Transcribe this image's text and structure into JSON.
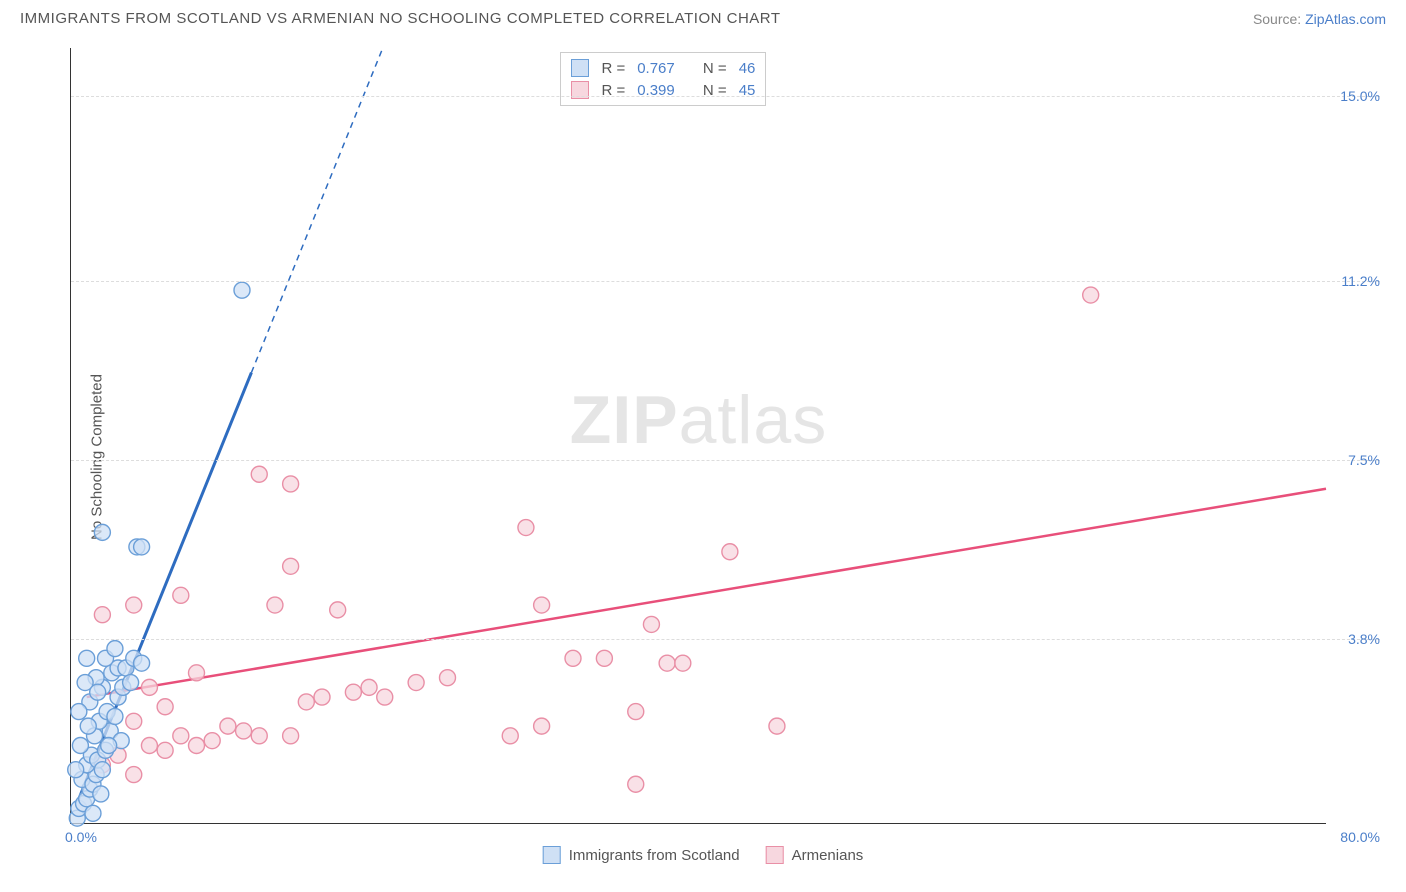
{
  "header": {
    "title": "IMMIGRANTS FROM SCOTLAND VS ARMENIAN NO SCHOOLING COMPLETED CORRELATION CHART",
    "source_prefix": "Source: ",
    "source_link": "ZipAtlas.com"
  },
  "chart": {
    "type": "scatter",
    "y_axis_label": "No Schooling Completed",
    "x_origin": "0.0%",
    "x_max": "80.0%",
    "xlim": [
      0,
      80
    ],
    "ylim": [
      0,
      16
    ],
    "y_ticks": [
      3.8,
      7.5,
      11.2,
      15.0
    ],
    "y_tick_labels": [
      "3.8%",
      "7.5%",
      "11.2%",
      "15.0%"
    ],
    "grid_color": "#dddddd",
    "axis_color": "#333333",
    "background_color": "#ffffff",
    "tick_label_color": "#4a7ec9",
    "watermark_zip": "ZIP",
    "watermark_atlas": "atlas",
    "series": {
      "scotland": {
        "label": "Immigrants from Scotland",
        "fill": "#cfe0f5",
        "stroke": "#6b9fd8",
        "line_color": "#2e6cc0",
        "r_label": "R =",
        "r_value": "0.767",
        "n_label": "N =",
        "n_value": "46",
        "line": {
          "x1": 0.5,
          "y1": 0.5,
          "x2": 11.5,
          "y2": 9.3,
          "dash_to_y": 16
        },
        "points": [
          [
            0.4,
            0.1
          ],
          [
            0.5,
            0.3
          ],
          [
            0.8,
            0.4
          ],
          [
            1.0,
            0.5
          ],
          [
            1.2,
            0.7
          ],
          [
            0.7,
            0.9
          ],
          [
            1.4,
            0.8
          ],
          [
            1.6,
            1.0
          ],
          [
            1.0,
            1.2
          ],
          [
            1.3,
            1.4
          ],
          [
            1.7,
            1.3
          ],
          [
            2.0,
            1.1
          ],
          [
            0.6,
            1.6
          ],
          [
            1.5,
            1.8
          ],
          [
            2.2,
            1.5
          ],
          [
            2.5,
            1.9
          ],
          [
            1.8,
            2.1
          ],
          [
            2.3,
            2.3
          ],
          [
            1.2,
            2.5
          ],
          [
            2.8,
            2.2
          ],
          [
            3.0,
            2.6
          ],
          [
            2.0,
            2.8
          ],
          [
            3.3,
            2.8
          ],
          [
            1.6,
            3.0
          ],
          [
            2.6,
            3.1
          ],
          [
            3.0,
            3.2
          ],
          [
            1.0,
            3.4
          ],
          [
            3.5,
            3.2
          ],
          [
            2.2,
            3.4
          ],
          [
            3.8,
            2.9
          ],
          [
            4.0,
            3.4
          ],
          [
            1.4,
            0.2
          ],
          [
            4.5,
            3.3
          ],
          [
            2.8,
            3.6
          ],
          [
            3.2,
            1.7
          ],
          [
            1.1,
            2.0
          ],
          [
            0.9,
            2.9
          ],
          [
            4.2,
            5.7
          ],
          [
            4.5,
            5.7
          ],
          [
            2.0,
            6.0
          ],
          [
            10.9,
            11.0
          ],
          [
            2.4,
            1.6
          ],
          [
            1.9,
            0.6
          ],
          [
            0.3,
            1.1
          ],
          [
            0.5,
            2.3
          ],
          [
            1.7,
            2.7
          ]
        ]
      },
      "armenian": {
        "label": "Armenians",
        "fill": "#f7d7df",
        "stroke": "#e98fa6",
        "line_color": "#e84f7a",
        "r_label": "R =",
        "r_value": "0.399",
        "n_label": "N =",
        "n_value": "45",
        "line": {
          "x1": 1,
          "y1": 2.6,
          "x2": 80,
          "y2": 6.9
        },
        "points": [
          [
            2,
            1.2
          ],
          [
            3,
            1.4
          ],
          [
            4,
            1.0
          ],
          [
            5,
            1.6
          ],
          [
            4,
            2.1
          ],
          [
            6,
            1.5
          ],
          [
            7,
            1.8
          ],
          [
            8,
            1.6
          ],
          [
            9,
            1.7
          ],
          [
            6,
            2.4
          ],
          [
            10,
            2.0
          ],
          [
            11,
            1.9
          ],
          [
            12,
            1.8
          ],
          [
            5,
            2.8
          ],
          [
            14,
            1.8
          ],
          [
            15,
            2.5
          ],
          [
            16,
            2.6
          ],
          [
            8,
            3.1
          ],
          [
            13,
            4.5
          ],
          [
            18,
            2.7
          ],
          [
            19,
            2.8
          ],
          [
            20,
            2.6
          ],
          [
            14,
            5.3
          ],
          [
            17,
            4.4
          ],
          [
            22,
            2.9
          ],
          [
            24,
            3.0
          ],
          [
            12,
            7.2
          ],
          [
            14,
            7.0
          ],
          [
            28,
            1.8
          ],
          [
            30,
            2.0
          ],
          [
            29,
            6.1
          ],
          [
            32,
            3.4
          ],
          [
            34,
            3.4
          ],
          [
            36,
            2.3
          ],
          [
            37,
            4.1
          ],
          [
            36,
            0.8
          ],
          [
            38,
            3.3
          ],
          [
            39,
            3.3
          ],
          [
            42,
            5.6
          ],
          [
            45,
            2.0
          ],
          [
            30,
            4.5
          ],
          [
            65,
            10.9
          ],
          [
            4,
            4.5
          ],
          [
            7,
            4.7
          ],
          [
            2,
            4.3
          ]
        ]
      }
    }
  }
}
